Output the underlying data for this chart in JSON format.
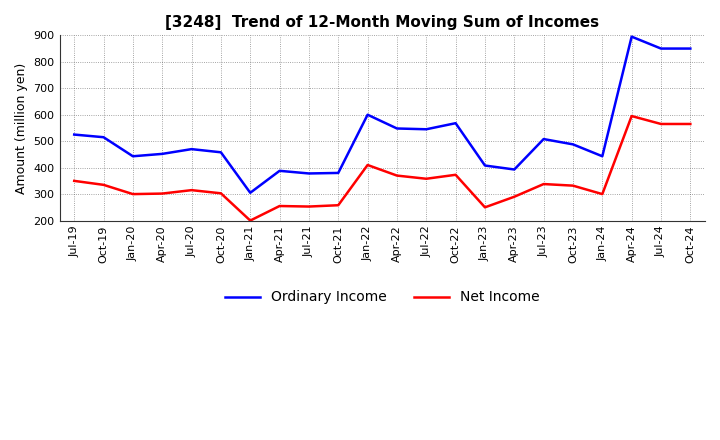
{
  "title": "[3248]  Trend of 12-Month Moving Sum of Incomes",
  "ylabel": "Amount (million yen)",
  "xlabels": [
    "Jul-19",
    "Oct-19",
    "Jan-20",
    "Apr-20",
    "Jul-20",
    "Oct-20",
    "Jan-21",
    "Apr-21",
    "Jul-21",
    "Oct-21",
    "Jan-22",
    "Apr-22",
    "Jul-22",
    "Oct-22",
    "Jan-23",
    "Apr-23",
    "Jul-23",
    "Oct-23",
    "Jan-24",
    "Apr-24",
    "Jul-24",
    "Oct-24"
  ],
  "ordinary_income": [
    525,
    515,
    443,
    452,
    470,
    458,
    305,
    388,
    378,
    380,
    600,
    548,
    545,
    568,
    408,
    393,
    508,
    488,
    443,
    895,
    850,
    850
  ],
  "net_income": [
    350,
    335,
    300,
    302,
    315,
    303,
    200,
    255,
    253,
    258,
    410,
    370,
    358,
    373,
    250,
    290,
    338,
    332,
    300,
    595,
    565,
    565
  ],
  "ordinary_color": "#0000ff",
  "net_color": "#ff0000",
  "ylim": [
    200,
    900
  ],
  "yticks": [
    200,
    300,
    400,
    500,
    600,
    700,
    800,
    900
  ],
  "bg_color": "#ffffff",
  "grid_color": "#555555",
  "title_fontsize": 11,
  "label_fontsize": 9,
  "tick_fontsize": 8,
  "line_width": 1.8
}
